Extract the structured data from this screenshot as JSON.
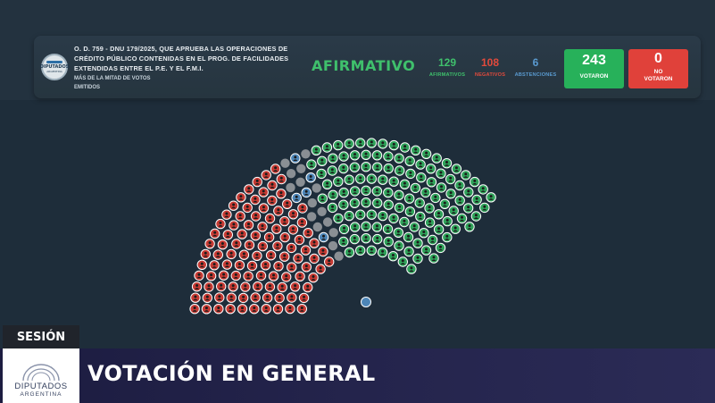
{
  "header": {
    "logo": {
      "name": "Diputados Argentina logo",
      "line1": "DIPUTADOS",
      "line2": "ARGENTINA"
    },
    "title": "O. D. 759 - DNU 179/2025, que aprueba las operaciones de crédito público contenidas en el prog. de facilidades extendidas entre el P.E. y el F.M.I.",
    "majority_rule": "Más de la mitad de votos emitidos",
    "result": "AFIRMATIVO",
    "counts": [
      {
        "value": "129",
        "label": "AFIRMATIVOS",
        "color": "#3fc06c"
      },
      {
        "value": "108",
        "label": "NEGATIVOS",
        "color": "#e24a3c"
      },
      {
        "value": "6",
        "label": "ABSTENCIONES",
        "color": "#5a9ad0"
      }
    ],
    "voted": {
      "value": "243",
      "label": "VOTARON",
      "color": "#27b15a"
    },
    "not_voted": {
      "value": "0",
      "label_line1": "NO",
      "label_line2": "VOTARON",
      "color": "#e0413a"
    }
  },
  "hemicycle": {
    "total_seats": 257,
    "colors": {
      "affirmative": "#2fa35a",
      "negative": "#c63a33",
      "abstention": "#4d86b8",
      "absent": "#8a8f94",
      "president": "#4d86b8"
    },
    "tallies": {
      "affirmative": 129,
      "negative": 108,
      "abstention": 6
    }
  },
  "footer": {
    "session_label": "SESIÓN",
    "logo": {
      "line1": "DIPUTADOS",
      "line2": "ARGENTINA"
    },
    "heading": "VOTACIÓN EN GENERAL"
  }
}
